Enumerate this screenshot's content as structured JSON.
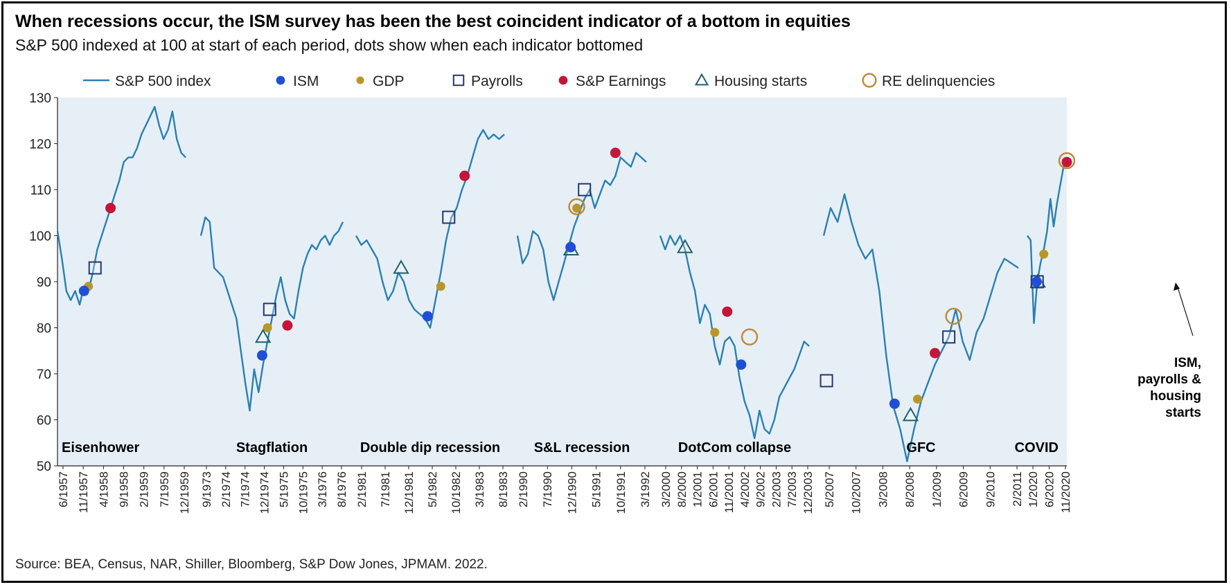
{
  "title": "When recessions occur, the ISM survey has been the best coincident indicator of a bottom in equities",
  "subtitle": "S&P 500 indexed at 100 at start of each period, dots show when each indicator bottomed",
  "source": "Source: BEA, Census, NAR, Shiller, Bloomberg, S&P Dow Jones, JPMAM. 2022.",
  "colors": {
    "line": "#2a7fb0",
    "plot_bg": "#e6eff6",
    "ism": "#1f4fd6",
    "gdp": "#b89628",
    "payrolls": "#24356d",
    "earnings": "#c5163a",
    "housing": "#1f5f6a",
    "re_delinquencies": "#c08a3c"
  },
  "chart_data": {
    "type": "line",
    "ylim": [
      50,
      130
    ],
    "yticks": [
      50,
      60,
      70,
      80,
      90,
      100,
      110,
      120,
      130
    ],
    "legend_position": "top",
    "legend": [
      {
        "key": "sp500",
        "label": "S&P 500 index",
        "marker": "line"
      },
      {
        "key": "ism",
        "label": "ISM",
        "marker": "filled-circle"
      },
      {
        "key": "gdp",
        "label": "GDP",
        "marker": "filled-circle"
      },
      {
        "key": "payrolls",
        "label": "Payrolls",
        "marker": "open-square"
      },
      {
        "key": "earnings",
        "label": "S&P Earnings",
        "marker": "filled-circle"
      },
      {
        "key": "housing",
        "label": "Housing starts",
        "marker": "open-triangle"
      },
      {
        "key": "re_delinquencies",
        "label": "RE delinquencies",
        "marker": "open-circle"
      }
    ],
    "periods": [
      {
        "name": "Eisenhower",
        "tick_labels": [
          "6/1957",
          "11/1957",
          "4/1958",
          "9/1958",
          "2/1959",
          "7/1959",
          "12/1959"
        ],
        "sp500": [
          101,
          95,
          88,
          86,
          88,
          85,
          89,
          88,
          92,
          97,
          100,
          103,
          106,
          109,
          112,
          116,
          117,
          117,
          119,
          122,
          124,
          126,
          128,
          124,
          121,
          123,
          127,
          121,
          118,
          117
        ],
        "markers": [
          {
            "type": "ism",
            "x": 6,
            "y": 88
          },
          {
            "type": "gdp",
            "x": 7,
            "y": 89
          },
          {
            "type": "payrolls",
            "x": 8.5,
            "y": 93
          },
          {
            "type": "earnings",
            "x": 12,
            "y": 106
          }
        ]
      },
      {
        "name": "Stagflation",
        "tick_labels": [
          "9/1973",
          "2/1974",
          "7/1974",
          "12/1974",
          "5/1975",
          "10/1975",
          "3/1976",
          "8/1976"
        ],
        "sp500": [
          100,
          104,
          103,
          93,
          92,
          91,
          88,
          85,
          82,
          75,
          68,
          62,
          71,
          66,
          72,
          77,
          82,
          87,
          91,
          86,
          83,
          82,
          88,
          93,
          96,
          98,
          97,
          99,
          100,
          98,
          100,
          101,
          103
        ],
        "markers": [
          {
            "type": "ism",
            "x": 13.8,
            "y": 74
          },
          {
            "type": "housing",
            "x": 14,
            "y": 78
          },
          {
            "type": "gdp",
            "x": 15,
            "y": 80
          },
          {
            "type": "payrolls",
            "x": 15.5,
            "y": 84
          },
          {
            "type": "earnings",
            "x": 19.5,
            "y": 80.5
          }
        ]
      },
      {
        "name": "Double dip recession",
        "tick_labels": [
          "2/1981",
          "7/1981",
          "12/1981",
          "5/1982",
          "10/1982",
          "3/1983",
          "8/1983"
        ],
        "sp500": [
          100,
          98,
          99,
          97,
          95,
          90,
          86,
          88,
          92,
          90,
          86,
          84,
          83,
          82,
          80,
          86,
          92,
          99,
          104,
          106,
          110,
          113,
          117,
          121,
          123,
          121,
          122,
          121,
          122
        ],
        "markers": [
          {
            "type": "housing",
            "x": 8.5,
            "y": 93
          },
          {
            "type": "ism",
            "x": 13.5,
            "y": 82.5
          },
          {
            "type": "gdp",
            "x": 16,
            "y": 89
          },
          {
            "type": "payrolls",
            "x": 17.5,
            "y": 104
          },
          {
            "type": "earnings",
            "x": 20.5,
            "y": 113
          }
        ]
      },
      {
        "name": "S&L recession",
        "tick_labels": [
          "2/1990",
          "7/1990",
          "12/1990",
          "5/1991",
          "10/1991",
          "3/1992"
        ],
        "sp500": [
          100,
          94,
          96,
          101,
          100,
          97,
          90,
          86,
          90,
          94,
          98,
          102,
          105,
          108,
          110,
          106,
          109,
          112,
          111,
          113,
          117,
          116,
          115,
          118,
          117,
          116
        ],
        "markers": [
          {
            "type": "ism",
            "x": 10.3,
            "y": 97.5
          },
          {
            "type": "housing",
            "x": 10.4,
            "y": 97
          },
          {
            "type": "gdp",
            "x": 11.5,
            "y": 106
          },
          {
            "type": "re_delinquencies",
            "x": 11.5,
            "y": 106.3
          },
          {
            "type": "payrolls",
            "x": 13,
            "y": 110
          },
          {
            "type": "earnings",
            "x": 19,
            "y": 118
          }
        ]
      },
      {
        "name": "DotCom collapse",
        "tick_labels": [
          "3/2000",
          "8/2000",
          "1/2001",
          "6/2001",
          "11/2001",
          "4/2002",
          "9/2002",
          "2/2003",
          "7/2003",
          "12/2003"
        ],
        "sp500": [
          100,
          97,
          100,
          98,
          100,
          97,
          92,
          88,
          81,
          85,
          83,
          76,
          72,
          77,
          78,
          76,
          69,
          64,
          61,
          56,
          62,
          58,
          57,
          60,
          65,
          67,
          69,
          71,
          74,
          77,
          76
        ],
        "markers": [
          {
            "type": "housing",
            "x": 5,
            "y": 97.5
          },
          {
            "type": "gdp",
            "x": 11,
            "y": 79
          },
          {
            "type": "earnings",
            "x": 13.5,
            "y": 83.5
          },
          {
            "type": "ism",
            "x": 16.3,
            "y": 72
          },
          {
            "type": "re_delinquencies",
            "x": 18,
            "y": 78
          },
          {
            "type": "payrolls",
            "x": 33.5,
            "y": 68.5
          }
        ]
      },
      {
        "name": "GFC",
        "tick_labels": [
          "5/2007",
          "10/2007",
          "3/2008",
          "8/2008",
          "1/2009",
          "6/2009",
          "9/2010",
          "2/2011"
        ],
        "sp500": [
          100,
          106,
          103,
          109,
          103,
          98,
          95,
          97,
          88,
          74,
          63,
          58,
          51,
          58,
          64,
          68,
          72,
          75,
          78,
          84,
          77,
          73,
          79,
          82,
          87,
          92,
          95,
          94,
          93
        ],
        "markers": [
          {
            "type": "ism",
            "x": 10.2,
            "y": 63.5
          },
          {
            "type": "housing",
            "x": 12.5,
            "y": 61
          },
          {
            "type": "gdp",
            "x": 13.5,
            "y": 64.5
          },
          {
            "type": "earnings",
            "x": 16,
            "y": 74.5
          },
          {
            "type": "payrolls",
            "x": 18,
            "y": 78
          },
          {
            "type": "re_delinquencies",
            "x": 18.7,
            "y": 82.5
          }
        ]
      },
      {
        "name": "COVID",
        "tick_labels": [
          "1/2020",
          "6/2020",
          "11/2020"
        ],
        "sp500": [
          100,
          99,
          81,
          90,
          94,
          97,
          101,
          108,
          102,
          107,
          111,
          115,
          117
        ],
        "markers": [
          {
            "type": "ism",
            "x": 2.8,
            "y": 90
          },
          {
            "type": "payrolls",
            "x": 3,
            "y": 90
          },
          {
            "type": "housing",
            "x": 3.2,
            "y": 90
          },
          {
            "type": "gdp",
            "x": 5,
            "y": 96
          },
          {
            "type": "earnings",
            "x": 12,
            "y": 116
          },
          {
            "type": "re_delinquencies",
            "x": 12,
            "y": 116.3
          }
        ]
      }
    ],
    "annotations": [
      {
        "text": "ISM,",
        "period": "COVID"
      },
      {
        "text": "payrolls &",
        "period": "COVID"
      },
      {
        "text": "housing",
        "period": "COVID"
      },
      {
        "text": "starts",
        "period": "COVID"
      }
    ]
  }
}
